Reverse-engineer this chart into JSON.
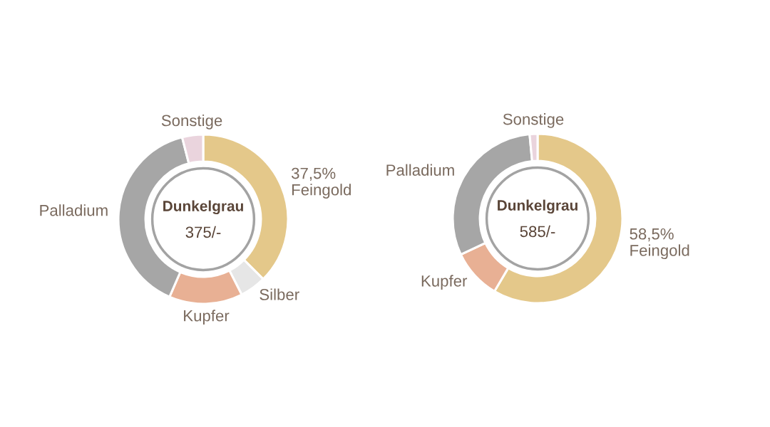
{
  "chart_data": [
    {
      "type": "donut",
      "title": "Dunkelgrau",
      "subtitle": "375/-",
      "categories": [
        "Feingold",
        "Silber",
        "Kupfer",
        "Palladium",
        "Sonstige"
      ],
      "values": [
        37.5,
        5,
        14,
        39.5,
        4
      ],
      "colors": [
        "#e4c88a",
        "#e6e6e6",
        "#e8b094",
        "#a6a6a6",
        "#ead4dd"
      ],
      "value_labels": [
        "37,5%",
        null,
        null,
        null,
        null
      ]
    },
    {
      "type": "donut",
      "title": "Dunkelgrau",
      "subtitle": "585/-",
      "categories": [
        "Feingold",
        "Kupfer",
        "Palladium",
        "Sonstige"
      ],
      "values": [
        58.5,
        9.5,
        30.5,
        1.5
      ],
      "colors": [
        "#e4c88a",
        "#e8b094",
        "#a6a6a6",
        "#ead4dd"
      ],
      "value_labels": [
        "58,5%",
        null,
        null,
        null
      ]
    }
  ]
}
